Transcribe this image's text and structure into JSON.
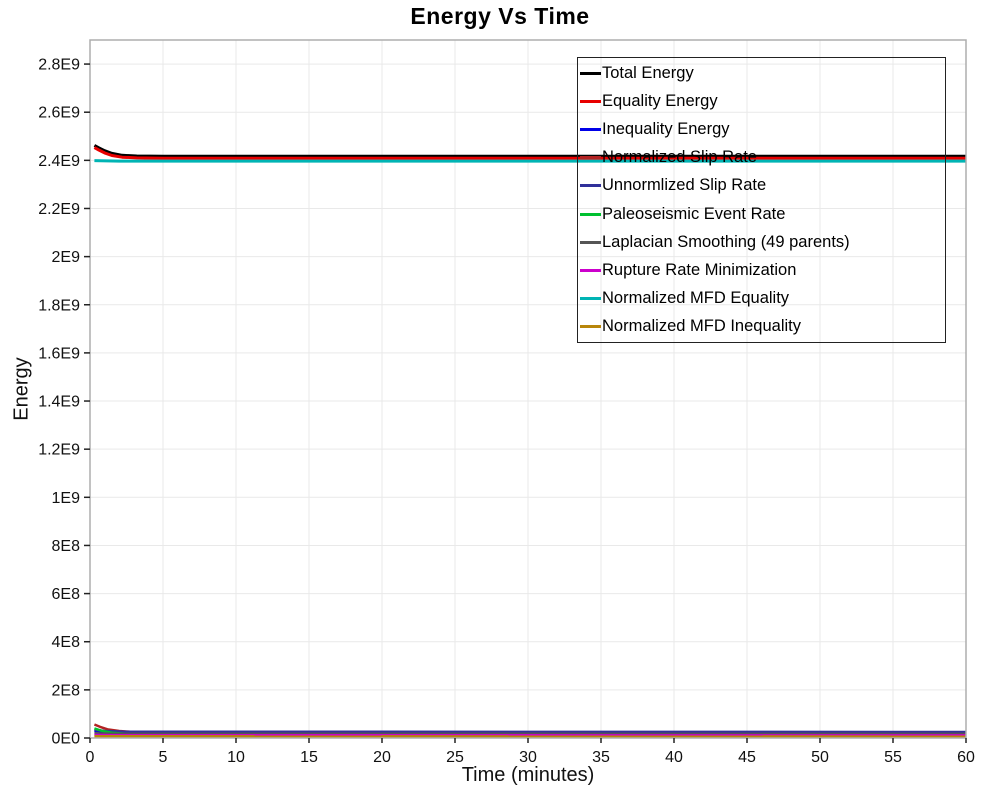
{
  "title": "Energy Vs Time",
  "colors": {
    "background": "#ffffff",
    "grid": "#e9e9e9",
    "axis_border": "#adadad",
    "tick": "#222222",
    "legend_border": "#222222",
    "text": "#111111"
  },
  "chart_data": {
    "type": "line",
    "title": "Energy Vs Time",
    "xlabel": "Time (minutes)",
    "ylabel": "Energy",
    "xlim": [
      0,
      60
    ],
    "ylim": [
      0,
      2900000000.0
    ],
    "grid": true,
    "legend_position": "top-right-inside",
    "legend_transparent": true,
    "xticks": [
      0,
      5,
      10,
      15,
      20,
      25,
      30,
      35,
      40,
      45,
      50,
      55,
      60
    ],
    "ytick_values": [
      0,
      200000000.0,
      400000000.0,
      600000000.0,
      800000000.0,
      1000000000.0,
      1200000000.0,
      1400000000.0,
      1600000000.0,
      1800000000.0,
      2000000000.0,
      2200000000.0,
      2400000000.0,
      2600000000.0,
      2800000000.0
    ],
    "ytick_labels": [
      "0E0",
      "2E8",
      "4E8",
      "6E8",
      "8E8",
      "1E9",
      "1.2E9",
      "1.4E9",
      "1.6E9",
      "1.8E9",
      "2E9",
      "2.2E9",
      "2.4E9",
      "2.6E9",
      "2.8E9"
    ],
    "series": [
      {
        "name": "Total Energy",
        "color": "#000000",
        "width": 3,
        "points": [
          [
            0.3,
            2462000000.0
          ],
          [
            0.6,
            2452000000.0
          ],
          [
            1.0,
            2440000000.0
          ],
          [
            1.5,
            2429000000.0
          ],
          [
            2.2,
            2421000000.0
          ],
          [
            3.2,
            2418000000.0
          ],
          [
            5,
            2417000000.0
          ],
          [
            60,
            2417000000.0
          ]
        ]
      },
      {
        "name": "Equality Energy",
        "color": "#e80000",
        "width": 3,
        "points": [
          [
            0.3,
            2453000000.0
          ],
          [
            0.6,
            2443000000.0
          ],
          [
            1.0,
            2431000000.0
          ],
          [
            1.5,
            2420000000.0
          ],
          [
            2.2,
            2413000000.0
          ],
          [
            3.2,
            2410000000.0
          ],
          [
            5,
            2409000000.0
          ],
          [
            60,
            2409000000.0
          ]
        ]
      },
      {
        "name": "Inequality Energy",
        "color": "#0000e8",
        "width": 2.5,
        "points": [
          [
            0.3,
            30000000.0
          ],
          [
            1.0,
            26000000.0
          ],
          [
            2.5,
            23000000.0
          ],
          [
            60,
            22000000.0
          ]
        ]
      },
      {
        "name": "Normalized Slip Rate",
        "color": "#b22222",
        "width": 2.5,
        "points": [
          [
            0.3,
            56000000.0
          ],
          [
            0.7,
            46000000.0
          ],
          [
            1.2,
            36000000.0
          ],
          [
            2.0,
            29000000.0
          ],
          [
            3.0,
            25000000.0
          ],
          [
            5,
            23500000.0
          ],
          [
            60,
            23000000.0
          ]
        ]
      },
      {
        "name": "Unnormlized Slip Rate",
        "color": "#30309a",
        "width": 2.5,
        "points": [
          [
            0.3,
            34000000.0
          ],
          [
            1.0,
            29000000.0
          ],
          [
            2.5,
            26000000.0
          ],
          [
            60,
            25000000.0
          ]
        ]
      },
      {
        "name": "Paleoseismic Event Rate",
        "color": "#00c030",
        "width": 2.5,
        "points": [
          [
            0.3,
            40000000.0
          ],
          [
            0.8,
            30000000.0
          ],
          [
            1.5,
            22000000.0
          ],
          [
            2.5,
            17000000.0
          ],
          [
            4,
            15000000.0
          ],
          [
            60,
            14000000.0
          ]
        ]
      },
      {
        "name": "Laplacian Smoothing (49 parents)",
        "color": "#555555",
        "width": 2.5,
        "points": [
          [
            0.3,
            20000000.0
          ],
          [
            1.5,
            18000000.0
          ],
          [
            60,
            17000000.0
          ]
        ]
      },
      {
        "name": "Rupture Rate Minimization",
        "color": "#cc00cc",
        "width": 2.5,
        "points": [
          [
            0.3,
            13000000.0
          ],
          [
            1.5,
            11500000.0
          ],
          [
            60,
            11000000.0
          ]
        ]
      },
      {
        "name": "Normalized MFD Equality",
        "color": "#00b4b4",
        "width": 3,
        "points": [
          [
            0.3,
            2399000000.0
          ],
          [
            2,
            2397000000.0
          ],
          [
            60,
            2397000000.0
          ]
        ]
      },
      {
        "name": "Normalized MFD Inequality",
        "color": "#b8860b",
        "width": 2.5,
        "points": [
          [
            0.3,
            7000000.0
          ],
          [
            60,
            6000000.0
          ]
        ]
      }
    ]
  }
}
